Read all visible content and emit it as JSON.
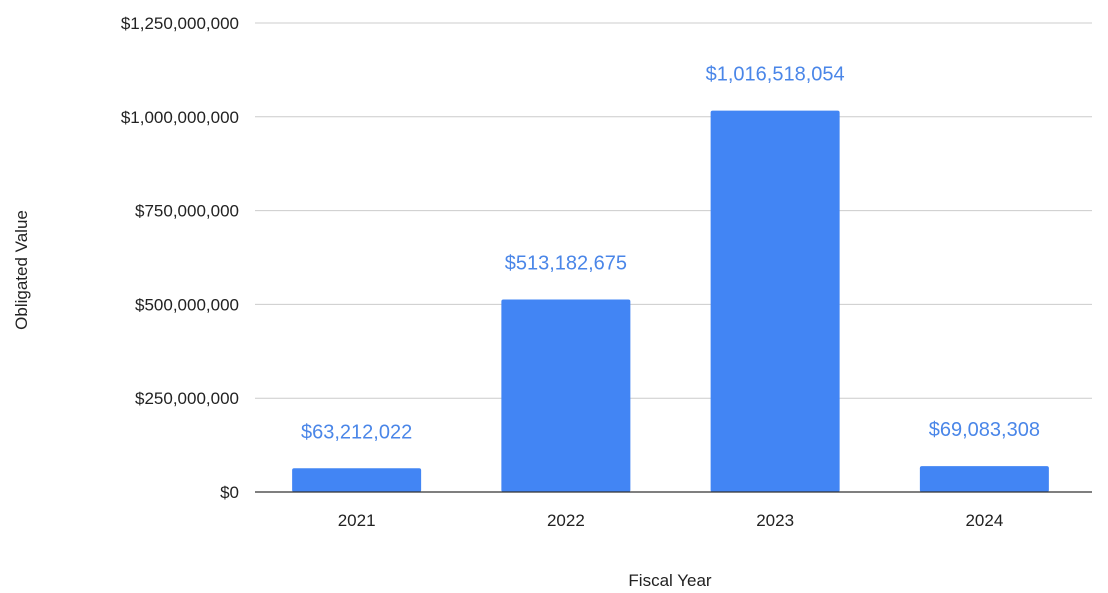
{
  "chart_data": {
    "type": "bar",
    "title": "",
    "xlabel": "Fiscal Year",
    "ylabel": "Obligated Value",
    "categories": [
      "2021",
      "2022",
      "2023",
      "2024"
    ],
    "series": [
      {
        "values": [
          63212022,
          513182675,
          1016518054,
          69083308
        ],
        "data_labels": [
          "$63,212,022",
          "$513,182,675",
          "$1,016,518,054",
          "$69,083,308"
        ]
      }
    ],
    "ylim": [
      0,
      1250000000
    ],
    "yticks": [
      0,
      250000000,
      500000000,
      750000000,
      1000000000,
      1250000000
    ],
    "ytick_labels": [
      "$0",
      "$250,000,000",
      "$500,000,000",
      "$750,000,000",
      "$1,000,000,000",
      "$1,250,000,000"
    ],
    "grid": true,
    "legend": "none",
    "colors": {
      "bar": "#4285f4",
      "data_label": "#4a86e8",
      "gridline": "#cccccc",
      "axis": "#333333",
      "text": "#222222"
    }
  }
}
